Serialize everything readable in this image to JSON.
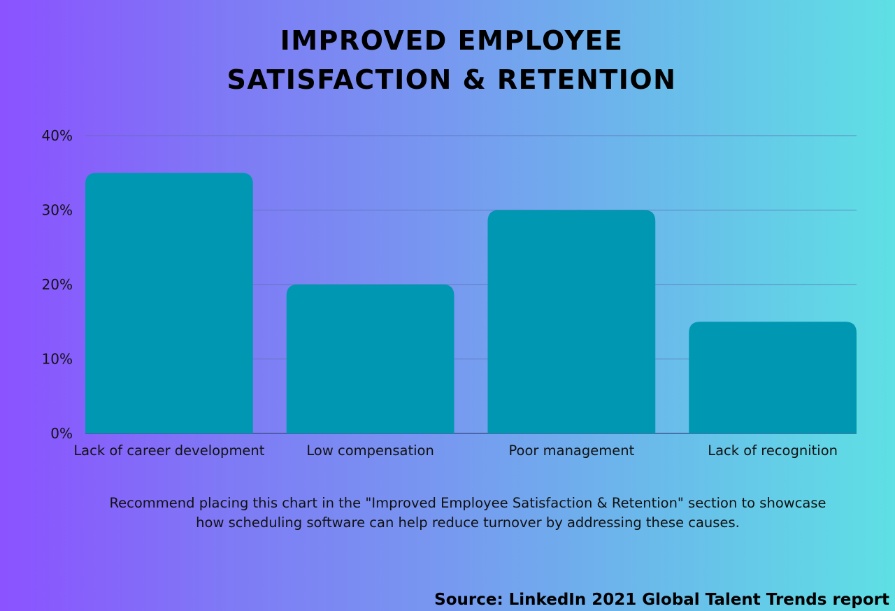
{
  "chart_data": {
    "type": "bar",
    "title_lines": [
      "IMPROVED EMPLOYEE",
      "SATISFACTION & RETENTION"
    ],
    "categories": [
      "Lack of career development",
      "Low compensation",
      "Poor management",
      "Lack of recognition"
    ],
    "values": [
      35,
      20,
      30,
      15
    ],
    "yticks": [
      "0%",
      "10%",
      "20%",
      "30%",
      "40%"
    ],
    "ylim": [
      0,
      40
    ],
    "grid": true,
    "bar_color": "#0097b2",
    "grid_color": "#5a6fb0"
  },
  "note": "Recommend placing this chart in the \"Improved Employee Satisfaction & Retention\" section to showcase how scheduling software can help reduce turnover by addressing these causes.",
  "source": "Source: LinkedIn 2021 Global Talent Trends report"
}
